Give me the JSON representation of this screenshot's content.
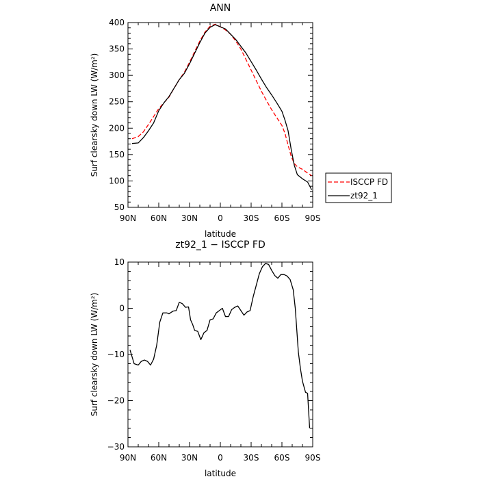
{
  "chart_data": [
    {
      "type": "line",
      "title": "ANN",
      "xlabel": "latitude",
      "ylabel": "Surf clearsky down LW (W/m²)",
      "x_tick_labels": [
        "90N",
        "60N",
        "30N",
        "0",
        "30S",
        "60S",
        "90S"
      ],
      "y_tick_labels": [
        "50",
        "100",
        "150",
        "200",
        "250",
        "300",
        "350",
        "400"
      ],
      "x_ticks": [
        90,
        60,
        30,
        0,
        -30,
        -60,
        -90
      ],
      "y_ticks": [
        50,
        100,
        150,
        200,
        250,
        300,
        350,
        400
      ],
      "xlim": [
        90,
        -90
      ],
      "ylim": [
        50,
        400
      ],
      "legend": {
        "placement": "right"
      },
      "series": [
        {
          "name": "ISCCP FD",
          "color": "#ff0000",
          "dash": "dashed",
          "x": [
            86,
            80,
            75,
            70,
            65,
            60,
            55,
            50,
            45,
            40,
            35,
            30,
            25,
            20,
            15,
            10,
            5,
            0,
            -5,
            -10,
            -15,
            -20,
            -25,
            -30,
            -35,
            -40,
            -45,
            -50,
            -55,
            -60,
            -63,
            -66,
            -69,
            -72,
            -75,
            -80,
            -85,
            -89
          ],
          "y": [
            180,
            184,
            193,
            207,
            222,
            237,
            248,
            259,
            276,
            292,
            306,
            325,
            345,
            365,
            382,
            393,
            397,
            392,
            386,
            378,
            365,
            350,
            330,
            310,
            290,
            270,
            252,
            235,
            220,
            205,
            190,
            168,
            147,
            133,
            127,
            122,
            115,
            110
          ]
        },
        {
          "name": "zt92_1",
          "color": "#000000",
          "dash": "solid",
          "x": [
            86,
            80,
            75,
            70,
            65,
            60,
            55,
            50,
            45,
            40,
            35,
            30,
            25,
            20,
            15,
            10,
            5,
            0,
            -5,
            -10,
            -15,
            -20,
            -25,
            -30,
            -35,
            -40,
            -45,
            -50,
            -55,
            -60,
            -63,
            -66,
            -69,
            -72,
            -75,
            -80,
            -85,
            -89
          ],
          "y": [
            171,
            172,
            182,
            195,
            210,
            233,
            248,
            260,
            276,
            292,
            304,
            322,
            342,
            362,
            380,
            391,
            396,
            392,
            388,
            378,
            368,
            355,
            342,
            326,
            310,
            293,
            277,
            263,
            248,
            232,
            215,
            195,
            160,
            130,
            112,
            104,
            98,
            83
          ]
        }
      ]
    },
    {
      "type": "line",
      "title": "zt92_1 − ISCCP FD",
      "xlabel": "latitude",
      "ylabel": "Surf clearsky down LW (W/m²)",
      "x_tick_labels": [
        "90N",
        "60N",
        "30N",
        "0",
        "30S",
        "60S",
        "90S"
      ],
      "y_tick_labels": [
        "10",
        "0",
        "−10",
        "−20",
        "−30"
      ],
      "x_ticks": [
        90,
        60,
        30,
        0,
        -30,
        -60,
        -90
      ],
      "y_ticks": [
        10,
        0,
        -10,
        -20,
        -30
      ],
      "xlim": [
        90,
        -90
      ],
      "ylim": [
        -30,
        10
      ],
      "series": [
        {
          "color": "#000000",
          "x": [
            88,
            84,
            80,
            77,
            74,
            71,
            68,
            65,
            62,
            59,
            56,
            52,
            50,
            46,
            43,
            40,
            37,
            34,
            31,
            29,
            27,
            25,
            22,
            19,
            16,
            13,
            10,
            7,
            4,
            1,
            -2,
            -5,
            -8,
            -11,
            -14,
            -17,
            -20,
            -23,
            -26,
            -29,
            -32,
            -35,
            -38,
            -41,
            -44,
            -47,
            -50,
            -53,
            -56,
            -59,
            -62,
            -65,
            -68,
            -71,
            -73,
            -76,
            -78,
            -80,
            -83,
            -85,
            -87
          ],
          "y": [
            -9,
            -12,
            -12.3,
            -11.5,
            -11.2,
            -11.5,
            -12.3,
            -11,
            -8,
            -3,
            -1,
            -1,
            -1.2,
            -0.6,
            -0.5,
            1.3,
            1,
            0.2,
            0.3,
            -2.5,
            -3.5,
            -4.8,
            -5,
            -6.8,
            -5.3,
            -4.8,
            -2.5,
            -2.3,
            -1,
            -0.5,
            0,
            -1.8,
            -1.8,
            -0.3,
            0.2,
            0.5,
            -0.5,
            -1.5,
            -0.8,
            -0.5,
            2.5,
            5,
            7.5,
            9,
            9.7,
            9.5,
            8.2,
            7.1,
            6.5,
            7.3,
            7.3,
            7,
            6.2,
            4,
            0,
            -9.5,
            -13,
            -15.8,
            -18.2,
            -18.4,
            -26
          ]
        }
      ]
    }
  ]
}
